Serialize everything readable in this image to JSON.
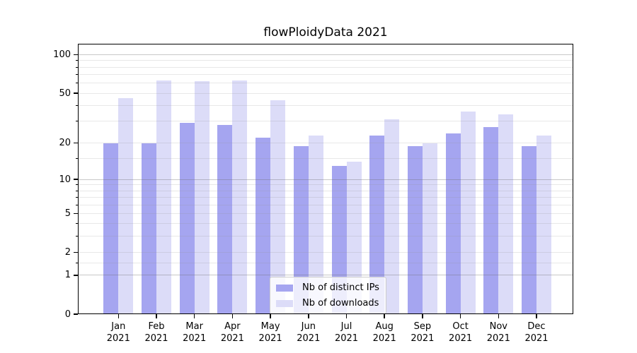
{
  "title": "flowPloidyData 2021",
  "legend": {
    "items": [
      {
        "label": "Nb of distinct IPs",
        "color": "#a5a5f0"
      },
      {
        "label": "Nb of downloads",
        "color": "#dcdcf8"
      }
    ]
  },
  "axes": {
    "y_major_tick_labels": [
      "0",
      "1",
      "2",
      "5",
      "10",
      "20",
      "50",
      "100"
    ],
    "x_tick_year": "2021"
  },
  "chart_data": {
    "type": "bar",
    "title": "flowPloidyData 2021",
    "xlabel": "",
    "ylabel": "",
    "yscale": "log1p",
    "ylim": [
      0,
      122
    ],
    "grid": true,
    "legend_position": "lower center (inside axes)",
    "categories": [
      "Jan 2021",
      "Feb 2021",
      "Mar 2021",
      "Apr 2021",
      "May 2021",
      "Jun 2021",
      "Jul 2021",
      "Aug 2021",
      "Sep 2021",
      "Oct 2021",
      "Nov 2021",
      "Dec 2021"
    ],
    "months": [
      "Jan",
      "Feb",
      "Mar",
      "Apr",
      "May",
      "Jun",
      "Jul",
      "Aug",
      "Sep",
      "Oct",
      "Nov",
      "Dec"
    ],
    "year": "2021",
    "y_major_ticks": [
      0,
      1,
      2,
      5,
      10,
      20,
      50,
      100
    ],
    "y_emphasized_gridlines": [
      1,
      10,
      100
    ],
    "y_minor_gridlines": [
      1.5,
      3,
      4,
      6,
      7,
      8,
      9,
      15,
      30,
      40,
      60,
      70,
      80,
      90
    ],
    "series": [
      {
        "name": "Nb of distinct IPs",
        "color": "#a5a5f0",
        "values": [
          20,
          20,
          29,
          28,
          22,
          19,
          13,
          23,
          19,
          24,
          27,
          19
        ]
      },
      {
        "name": "Nb of downloads",
        "color": "#dcdcf8",
        "values": [
          46,
          63,
          62,
          63,
          44,
          23,
          14,
          31,
          20,
          36,
          34,
          23
        ]
      }
    ]
  }
}
